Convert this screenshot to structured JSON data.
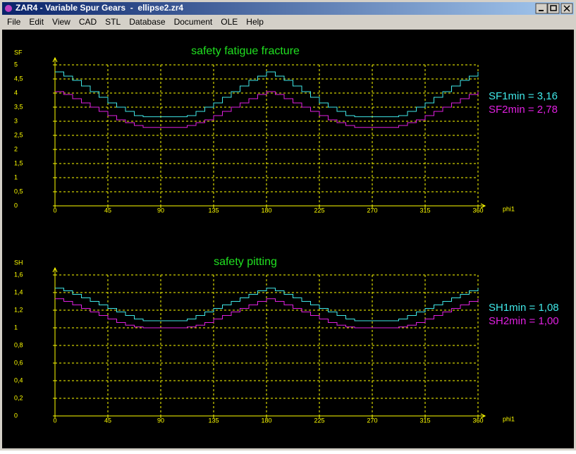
{
  "window": {
    "title": "ZAR4 - Variable Spur Gears  -  ellipse2.zr4"
  },
  "menu": [
    "File",
    "Edit",
    "View",
    "CAD",
    "STL",
    "Database",
    "Document",
    "OLE",
    "Help"
  ],
  "chart_data": [
    {
      "type": "line",
      "step": true,
      "title": "safety fatigue fracture",
      "y_label": "SF",
      "x_label": "phi1",
      "x": [
        0,
        7.5,
        15,
        22.5,
        30,
        37.5,
        45,
        52.5,
        60,
        67.5,
        75,
        82.5,
        90,
        97.5,
        105,
        112.5,
        120,
        127.5,
        135,
        142.5,
        150,
        157.5,
        165,
        172.5,
        180,
        187.5,
        195,
        202.5,
        210,
        217.5,
        225,
        232.5,
        240,
        247.5,
        255,
        262.5,
        270,
        277.5,
        285,
        292.5,
        300,
        307.5,
        315,
        322.5,
        330,
        337.5,
        345,
        352.5,
        360
      ],
      "xlim": [
        0,
        360
      ],
      "xticks": [
        0,
        45,
        90,
        135,
        180,
        225,
        270,
        315,
        360
      ],
      "ylim": [
        0,
        5
      ],
      "yticks": [
        0,
        {
          "value": 0.5,
          "label": "0,5"
        },
        1,
        {
          "value": 1.5,
          "label": "1,5"
        },
        2,
        {
          "value": 2.5,
          "label": "2,5"
        },
        3,
        {
          "value": 3.5,
          "label": "3,5"
        },
        4,
        {
          "value": 4.5,
          "label": "4,5"
        },
        5
      ],
      "grid": true,
      "series": [
        {
          "color": "#40e8e8",
          "values": [
            4.75,
            4.6,
            4.45,
            4.25,
            4.05,
            3.85,
            3.65,
            3.5,
            3.35,
            3.2,
            3.16,
            3.16,
            3.16,
            3.16,
            3.16,
            3.2,
            3.35,
            3.5,
            3.65,
            3.85,
            4.05,
            4.25,
            4.45,
            4.6,
            4.75,
            4.6,
            4.45,
            4.25,
            4.05,
            3.85,
            3.65,
            3.5,
            3.35,
            3.2,
            3.16,
            3.16,
            3.16,
            3.16,
            3.16,
            3.2,
            3.35,
            3.5,
            3.65,
            3.85,
            4.05,
            4.25,
            4.45,
            4.6,
            4.75
          ]
        },
        {
          "color": "#e020e0",
          "values": [
            4.05,
            3.95,
            3.8,
            3.65,
            3.5,
            3.35,
            3.2,
            3.05,
            2.95,
            2.85,
            2.78,
            2.78,
            2.78,
            2.78,
            2.78,
            2.85,
            2.95,
            3.05,
            3.2,
            3.35,
            3.5,
            3.65,
            3.8,
            3.95,
            4.05,
            3.95,
            3.8,
            3.65,
            3.5,
            3.35,
            3.2,
            3.05,
            2.95,
            2.85,
            2.78,
            2.78,
            2.78,
            2.78,
            2.78,
            2.85,
            2.95,
            3.05,
            3.2,
            3.35,
            3.5,
            3.65,
            3.8,
            3.95,
            4.05
          ]
        }
      ],
      "annotations": [
        {
          "text": "SF1min = 3,16",
          "color": "#40e8e8"
        },
        {
          "text": "SF2min = 2,78",
          "color": "#e020e0"
        }
      ]
    },
    {
      "type": "line",
      "step": true,
      "title": "safety pitting",
      "y_label": "SH",
      "x_label": "phi1",
      "x": [
        0,
        7.5,
        15,
        22.5,
        30,
        37.5,
        45,
        52.5,
        60,
        67.5,
        75,
        82.5,
        90,
        97.5,
        105,
        112.5,
        120,
        127.5,
        135,
        142.5,
        150,
        157.5,
        165,
        172.5,
        180,
        187.5,
        195,
        202.5,
        210,
        217.5,
        225,
        232.5,
        240,
        247.5,
        255,
        262.5,
        270,
        277.5,
        285,
        292.5,
        300,
        307.5,
        315,
        322.5,
        330,
        337.5,
        345,
        352.5,
        360
      ],
      "xlim": [
        0,
        360
      ],
      "xticks": [
        0,
        45,
        90,
        135,
        180,
        225,
        270,
        315,
        360
      ],
      "ylim": [
        0,
        1.6
      ],
      "yticks": [
        0,
        {
          "value": 0.2,
          "label": "0,2"
        },
        {
          "value": 0.4,
          "label": "0,4"
        },
        {
          "value": 0.6,
          "label": "0,6"
        },
        {
          "value": 0.8,
          "label": "0,8"
        },
        1,
        {
          "value": 1.2,
          "label": "1,2"
        },
        {
          "value": 1.4,
          "label": "1,4"
        },
        {
          "value": 1.6,
          "label": "1,6"
        }
      ],
      "grid": true,
      "series": [
        {
          "color": "#40e8e8",
          "values": [
            1.45,
            1.42,
            1.38,
            1.34,
            1.3,
            1.26,
            1.22,
            1.18,
            1.14,
            1.1,
            1.08,
            1.08,
            1.08,
            1.08,
            1.08,
            1.1,
            1.14,
            1.18,
            1.22,
            1.26,
            1.3,
            1.34,
            1.38,
            1.42,
            1.45,
            1.42,
            1.38,
            1.34,
            1.3,
            1.26,
            1.22,
            1.18,
            1.14,
            1.1,
            1.08,
            1.08,
            1.08,
            1.08,
            1.08,
            1.1,
            1.14,
            1.18,
            1.22,
            1.26,
            1.3,
            1.34,
            1.38,
            1.42,
            1.45
          ]
        },
        {
          "color": "#e020e0",
          "values": [
            1.33,
            1.3,
            1.26,
            1.22,
            1.18,
            1.14,
            1.1,
            1.06,
            1.03,
            1.01,
            1.0,
            1.0,
            1.0,
            1.0,
            1.0,
            1.01,
            1.03,
            1.06,
            1.1,
            1.14,
            1.18,
            1.22,
            1.26,
            1.3,
            1.33,
            1.3,
            1.26,
            1.22,
            1.18,
            1.14,
            1.1,
            1.06,
            1.03,
            1.01,
            1.0,
            1.0,
            1.0,
            1.0,
            1.0,
            1.01,
            1.03,
            1.06,
            1.1,
            1.14,
            1.18,
            1.22,
            1.26,
            1.3,
            1.33
          ]
        }
      ],
      "annotations": [
        {
          "text": "SH1min = 1,08",
          "color": "#40e8e8"
        },
        {
          "text": "SH2min = 1,00",
          "color": "#e020e0"
        }
      ]
    }
  ]
}
